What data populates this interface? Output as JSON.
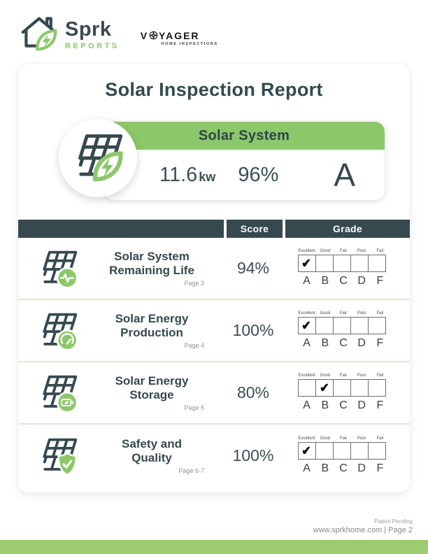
{
  "header": {
    "brand": {
      "name": "Sprk",
      "sub": "REPORTS"
    },
    "partner": {
      "name_left": "V",
      "name_right": "YAGER",
      "sub": "HOME INSPECTIONS"
    }
  },
  "report": {
    "title": "Solar Inspection Report",
    "summary": {
      "label": "Solar System",
      "capacity_value": "11.6",
      "capacity_unit": "kw",
      "score": "96%",
      "grade": "A"
    }
  },
  "table": {
    "headers": {
      "item": "",
      "score": "Score",
      "grade": "Grade"
    },
    "grade_scale": {
      "labels": [
        "Excellent",
        "Good",
        "Fair",
        "Poor",
        "Fail"
      ],
      "letters": [
        "A",
        "B",
        "C",
        "D",
        "F"
      ]
    },
    "checkmark": "✔",
    "rows": [
      {
        "title": "Solar System Remaining Life",
        "page": "Page 3",
        "score": "94%",
        "checked": 0,
        "icon": "solar-panel-pulse-icon"
      },
      {
        "title": "Solar Energy Production",
        "page": "Page 4",
        "score": "100%",
        "checked": 0,
        "icon": "solar-panel-gauge-icon"
      },
      {
        "title": "Solar Energy Storage",
        "page": "Page 5",
        "score": "80%",
        "checked": 1,
        "icon": "solar-panel-battery-icon"
      },
      {
        "title": "Safety and Quality",
        "page": "Page 6-7",
        "score": "100%",
        "checked": 0,
        "icon": "solar-panel-shield-icon"
      }
    ]
  },
  "footer": {
    "patent": "Patent Pending",
    "site": "www.sprkhome.com | Page 2"
  },
  "colors": {
    "green": "#8cc869",
    "teal": "#35494e"
  }
}
